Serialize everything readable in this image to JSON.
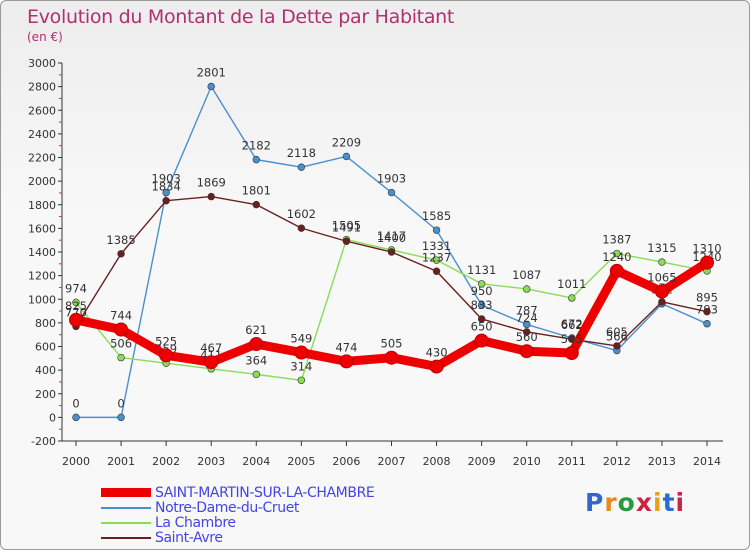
{
  "header": {
    "title": "Evolution du Montant de la Dette par Habitant",
    "subtitle": "(en €)"
  },
  "logo": {
    "text": "Proxiti",
    "colors": [
      "#3366cc",
      "#e88a1a",
      "#2b9a3e",
      "#cc2244",
      "#e8a21a",
      "#2b6ad6",
      "#cc2244"
    ]
  },
  "chart_data": {
    "type": "line",
    "title": "Evolution du Montant de la Dette par Habitant",
    "ylabel": "(en €)",
    "ylim": [
      -200,
      3000
    ],
    "yticks": [
      -200,
      0,
      200,
      400,
      600,
      800,
      1000,
      1200,
      1400,
      1600,
      1800,
      2000,
      2200,
      2400,
      2600,
      2800,
      3000
    ],
    "x": [
      "2000",
      "2001",
      "2002",
      "2003",
      "2004",
      "2005",
      "2006",
      "2007",
      "2008",
      "2009",
      "2010",
      "2011",
      "2012",
      "2013",
      "2014"
    ],
    "grid": false,
    "legend_position": "bottom-left",
    "series": [
      {
        "name": "SAINT-MARTIN-SUR-LA-CHAMBRE",
        "color": "#ee0000",
        "values": [
          825,
          744,
          525,
          467,
          621,
          549,
          474,
          505,
          430,
          650,
          560,
          545,
          1240,
          1065,
          1310
        ]
      },
      {
        "name": "Notre-Dame-du-Cruet",
        "color": "#4a8fce",
        "values": [
          0,
          0,
          1903,
          2801,
          2182,
          2118,
          2209,
          1903,
          1585,
          950,
          787,
          672,
          566,
          962,
          793
        ]
      },
      {
        "name": "La Chambre",
        "color": "#88dd55",
        "values": [
          974,
          506,
          459,
          411,
          364,
          314,
          1505,
          1417,
          1331,
          1131,
          1087,
          1011,
          1387,
          1315,
          1240
        ]
      },
      {
        "name": "Saint-Avre",
        "color": "#6b1f1f",
        "values": [
          770,
          1385,
          1834,
          1869,
          1801,
          1602,
          1491,
          1400,
          1237,
          833,
          724,
          662,
          605,
          978,
          895
        ]
      }
    ]
  }
}
